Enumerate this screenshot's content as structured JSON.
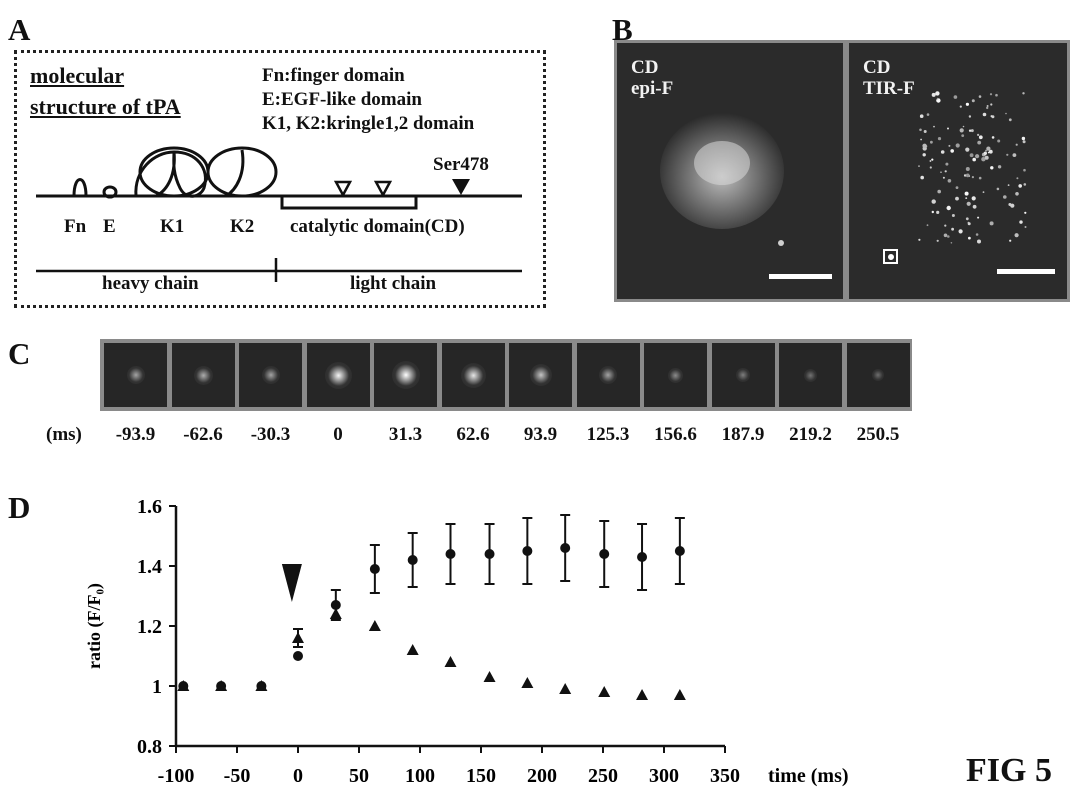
{
  "panel_labels": {
    "a": "A",
    "b": "B",
    "c": "C",
    "d": "D"
  },
  "panel_a": {
    "title_lines": [
      "molecular",
      "structure of tPA"
    ],
    "legend": [
      "Fn:finger domain",
      "E:EGF-like domain",
      "K1, K2:kringle1,2 domain"
    ],
    "site_label": "Ser478",
    "domain_labels": [
      "Fn",
      "E",
      "K1",
      "K2"
    ],
    "catalytic_label": "catalytic domain(CD)",
    "heavy_chain": "heavy chain",
    "light_chain": "light chain"
  },
  "panel_b": {
    "left_image": {
      "line1": "CD",
      "line2": "epi-F"
    },
    "right_image": {
      "line1": "CD",
      "line2": "TIR-F"
    }
  },
  "panel_c": {
    "unit_label": "(ms)",
    "time_labels": [
      "-93.9",
      "-62.6",
      "-30.3",
      "0",
      "31.3",
      "62.6",
      "93.9",
      "125.3",
      "156.6",
      "187.9",
      "219.2",
      "250.5"
    ],
    "frame_brightness": [
      0.45,
      0.5,
      0.45,
      0.95,
      1.0,
      0.85,
      0.65,
      0.45,
      0.3,
      0.22,
      0.15,
      0.12
    ]
  },
  "chart_data": {
    "type": "scatter",
    "ylabel": "ratio (F/F₀)",
    "xlabel": "time (ms)",
    "xlim": [
      -100,
      350
    ],
    "ylim": [
      0.8,
      1.6
    ],
    "x_ticks": [
      -100,
      -50,
      0,
      50,
      100,
      150,
      200,
      250,
      300,
      350
    ],
    "y_ticks": [
      0.8,
      1,
      1.2,
      1.4,
      1.6
    ],
    "y_tick_labels": [
      "0.8",
      "1",
      "1.2",
      "1.4",
      "1.6"
    ],
    "arrow_x": -5,
    "series": [
      {
        "marker": "circle",
        "x": [
          -94,
          -63,
          -30,
          0,
          31,
          63,
          94,
          125,
          157,
          188,
          219,
          251,
          282,
          313
        ],
        "y": [
          1.0,
          1.0,
          1.0,
          1.1,
          1.27,
          1.39,
          1.42,
          1.44,
          1.44,
          1.45,
          1.46,
          1.44,
          1.43,
          1.45
        ],
        "err": [
          0,
          0,
          0,
          0,
          0.05,
          0.08,
          0.09,
          0.1,
          0.1,
          0.11,
          0.11,
          0.11,
          0.11,
          0.11
        ]
      },
      {
        "marker": "triangle",
        "x": [
          -94,
          -63,
          -30,
          0,
          31,
          63,
          94,
          125,
          157,
          188,
          219,
          251,
          282,
          313
        ],
        "y": [
          1.0,
          1.0,
          1.0,
          1.16,
          1.24,
          1.2,
          1.12,
          1.08,
          1.03,
          1.01,
          0.99,
          0.98,
          0.97,
          0.97
        ],
        "err": [
          0,
          0,
          0,
          0.03,
          0,
          0,
          0,
          0,
          0,
          0,
          0,
          0,
          0,
          0
        ]
      }
    ]
  },
  "figure_label": "FIG 5"
}
